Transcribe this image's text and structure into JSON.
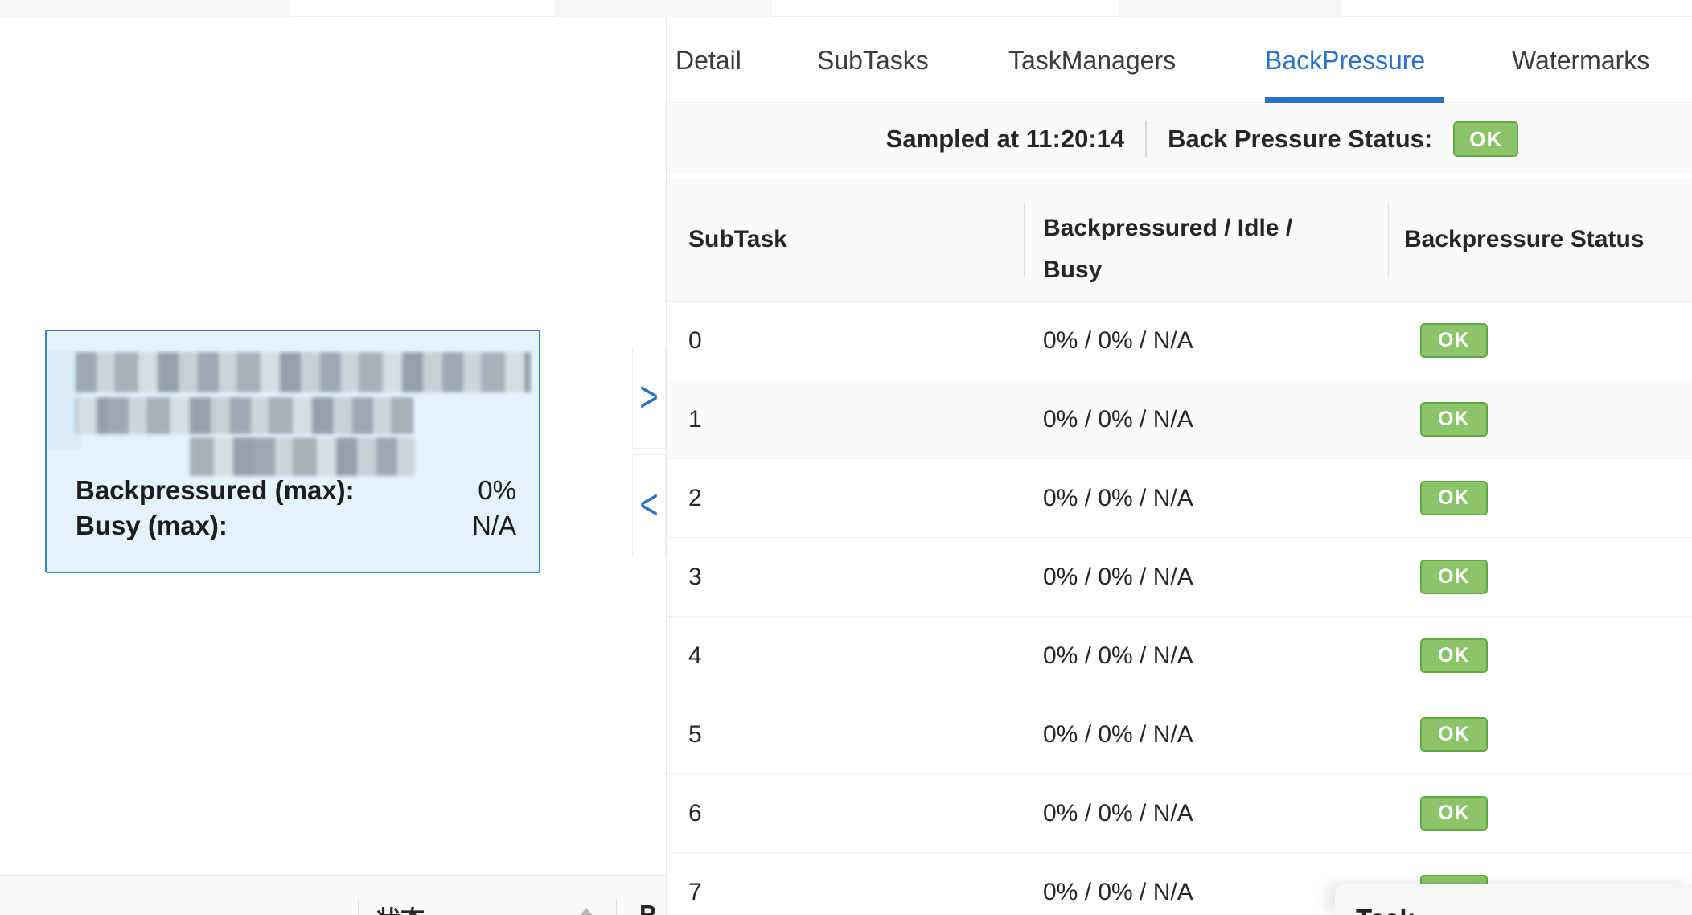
{
  "tabs": {
    "items": [
      "Detail",
      "SubTasks",
      "TaskManagers",
      "BackPressure",
      "Watermarks"
    ],
    "active": "BackPressure",
    "active_index": 3
  },
  "sampled_bar": {
    "sampled_text": "Sampled at 11:20:14",
    "status_label": "Back Pressure Status:",
    "status_value": "OK"
  },
  "bp_table": {
    "columns": [
      "SubTask",
      "Backpressured / Idle / Busy",
      "Backpressure Status"
    ],
    "highlighted_row_index": 1,
    "rows": [
      {
        "subtask": "0",
        "ratio": "0% / 0% / N/A",
        "status": "OK"
      },
      {
        "subtask": "1",
        "ratio": "0% / 0% / N/A",
        "status": "OK"
      },
      {
        "subtask": "2",
        "ratio": "0% / 0% / N/A",
        "status": "OK"
      },
      {
        "subtask": "3",
        "ratio": "0% / 0% / N/A",
        "status": "OK"
      },
      {
        "subtask": "4",
        "ratio": "0% / 0% / N/A",
        "status": "OK"
      },
      {
        "subtask": "5",
        "ratio": "0% / 0% / N/A",
        "status": "OK"
      },
      {
        "subtask": "6",
        "ratio": "0% / 0% / N/A",
        "status": "OK"
      },
      {
        "subtask": "7",
        "ratio": "0% / 0% / N/A",
        "status": "OK"
      }
    ]
  },
  "graph_node": {
    "title_redacted": true,
    "metrics": [
      {
        "label": "Backpressured (max):",
        "value": "0%"
      },
      {
        "label": "Busy (max):",
        "value": "N/A"
      }
    ]
  },
  "graph_controls": {
    "expand_icon": ">",
    "collapse_icon": "<"
  },
  "vertex_table": {
    "status_column": "状态",
    "partial_column": "P"
  },
  "bottom_overlay": {
    "partial_text": "Task"
  },
  "colors": {
    "accent_blue": "#2a72c8",
    "badge_green": "#8cc569",
    "badge_green_border": "#64a844",
    "node_fill": "#e4f2fc",
    "node_border": "#2e7fd0",
    "band_gray": "#fafafa"
  }
}
